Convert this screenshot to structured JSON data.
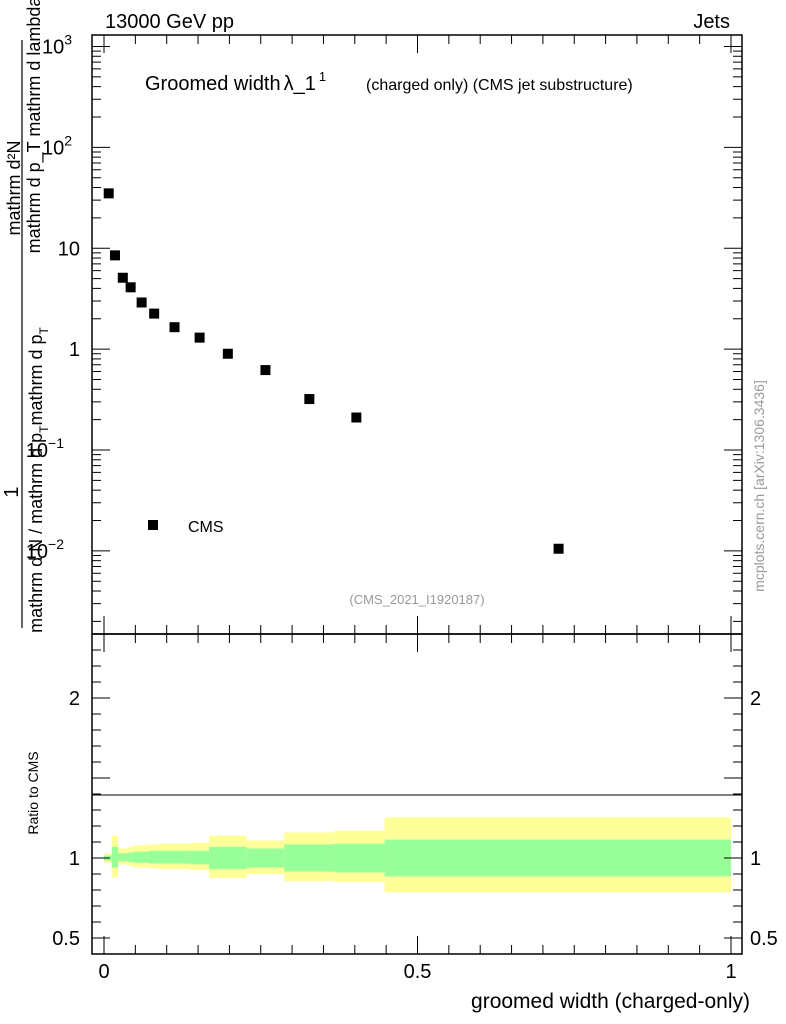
{
  "header": {
    "left": "13000 GeV pp",
    "right": "Jets"
  },
  "title": {
    "main": "Groomed width",
    "symbol": "λ_1",
    "sup": "1",
    "qualifier": "(charged only) (CMS jet substructure)"
  },
  "watermark": "mcplots.cern.ch [arXiv:1306.3436]",
  "analysis_tag": "(CMS_2021_I1920187)",
  "ylabel": {
    "top": "1",
    "bottom": "mathrm d N / mathrm d p",
    "bottom_sub": "T",
    "bottom_rest": "mathrm d p",
    "bottom_rest_sub": "T",
    "bottom_rest2": "mathrm d N",
    "full_top": "mathrm d²N",
    "full_bottom": "mathrm d p_T mathrm d lambda"
  },
  "ratio_ylabel": "Ratio to CMS",
  "xlabel": "groomed width (charged-only)",
  "legend": {
    "entry": "CMS",
    "position": "bottom-left"
  },
  "main_ticks": {
    "y": [
      {
        "base": "10",
        "exp": "3"
      },
      {
        "base": "10",
        "exp": "2"
      },
      {
        "base": "10",
        "exp": ""
      },
      {
        "base": "1",
        "exp": ""
      },
      {
        "base": "10",
        "exp": "−1"
      },
      {
        "base": "10",
        "exp": "−2"
      }
    ]
  },
  "ratio_ticks": {
    "y": [
      "2",
      "1",
      "0.5"
    ]
  },
  "x_ticks": [
    "0",
    "0.5",
    "1"
  ],
  "colors": {
    "band_outer": "#ffff99",
    "band_inner": "#99ff99",
    "marker": "#000000"
  },
  "chart_data": {
    "type": "scatter",
    "log_y": true,
    "xlim": [
      0,
      1
    ],
    "ylim": [
      0.0015,
      1300
    ],
    "series": [
      {
        "name": "CMS",
        "x": [
          0.0075,
          0.0175,
          0.03,
          0.0425,
          0.06,
          0.08,
          0.1125,
          0.1525,
          0.1975,
          0.2575,
          0.3275,
          0.4025,
          0.725
        ],
        "y": [
          35,
          8.5,
          5.1,
          4.1,
          2.9,
          2.25,
          1.65,
          1.3,
          0.9,
          0.62,
          0.32,
          0.21,
          0.0105
        ]
      }
    ],
    "ratio": {
      "ylim": [
        0.4,
        2.4
      ],
      "reference": 1,
      "bins": [
        {
          "x0": 0.0,
          "x1": 0.0125,
          "inner": [
            0.985,
            1.015
          ],
          "outer": [
            0.97,
            1.03
          ]
        },
        {
          "x0": 0.0125,
          "x1": 0.0225,
          "inner": [
            0.94,
            1.07
          ],
          "outer": [
            0.88,
            1.14
          ]
        },
        {
          "x0": 0.0225,
          "x1": 0.0375,
          "inner": [
            0.98,
            1.03
          ],
          "outer": [
            0.96,
            1.06
          ]
        },
        {
          "x0": 0.0375,
          "x1": 0.0475,
          "inner": [
            0.975,
            1.035
          ],
          "outer": [
            0.95,
            1.07
          ]
        },
        {
          "x0": 0.0475,
          "x1": 0.0725,
          "inner": [
            0.97,
            1.04
          ],
          "outer": [
            0.94,
            1.08
          ]
        },
        {
          "x0": 0.0725,
          "x1": 0.0875,
          "inner": [
            0.965,
            1.045
          ],
          "outer": [
            0.935,
            1.085
          ]
        },
        {
          "x0": 0.0875,
          "x1": 0.1375,
          "inner": [
            0.965,
            1.045
          ],
          "outer": [
            0.93,
            1.09
          ]
        },
        {
          "x0": 0.1375,
          "x1": 0.1675,
          "inner": [
            0.96,
            1.045
          ],
          "outer": [
            0.925,
            1.095
          ]
        },
        {
          "x0": 0.1675,
          "x1": 0.2275,
          "inner": [
            0.93,
            1.07
          ],
          "outer": [
            0.875,
            1.14
          ]
        },
        {
          "x0": 0.2275,
          "x1": 0.2875,
          "inner": [
            0.94,
            1.06
          ],
          "outer": [
            0.9,
            1.11
          ]
        },
        {
          "x0": 0.2875,
          "x1": 0.3675,
          "inner": [
            0.915,
            1.085
          ],
          "outer": [
            0.855,
            1.16
          ]
        },
        {
          "x0": 0.3675,
          "x1": 0.4475,
          "inner": [
            0.91,
            1.09
          ],
          "outer": [
            0.85,
            1.17
          ]
        },
        {
          "x0": 0.4475,
          "x1": 1.0,
          "inner": [
            0.885,
            1.115
          ],
          "outer": [
            0.785,
            1.255
          ]
        }
      ]
    }
  }
}
